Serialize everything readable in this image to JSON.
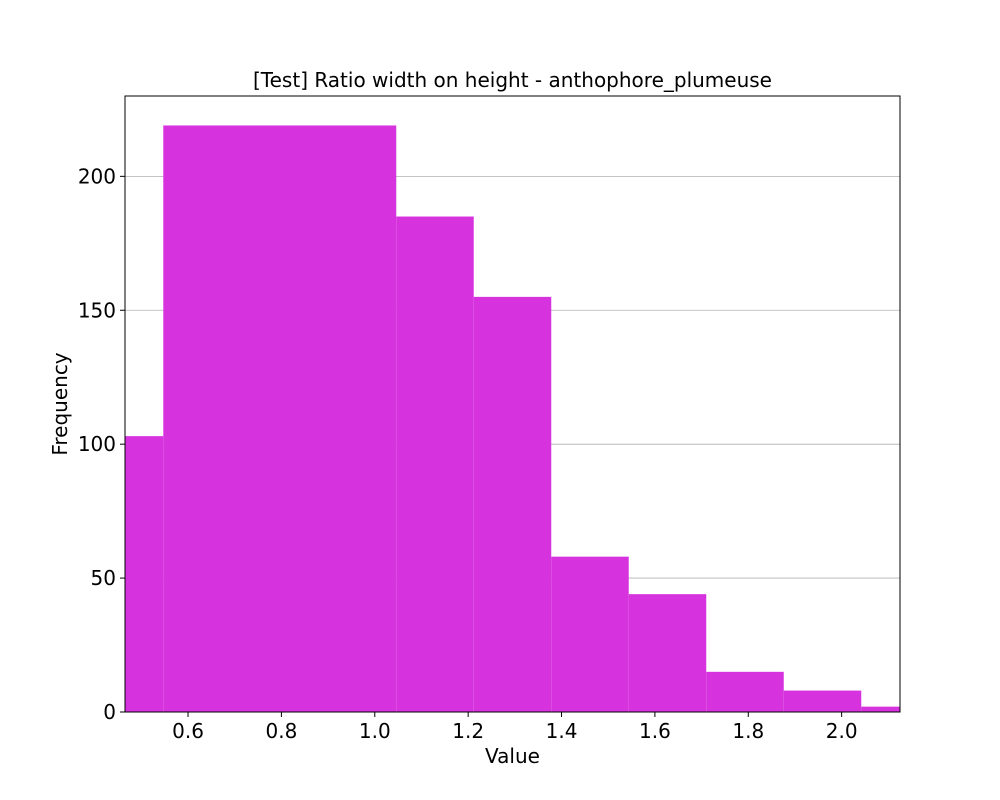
{
  "chart_data": {
    "type": "bar",
    "title": "[Test] Ratio width on height - anthophore_plumeuse",
    "xlabel": "Value",
    "ylabel": "Frequency",
    "xlim": [
      0.465,
      2.125
    ],
    "ylim": [
      0,
      230
    ],
    "xticks": [
      0.6,
      0.8,
      1.0,
      1.2,
      1.4,
      1.6,
      1.8,
      2.0
    ],
    "xtick_labels": [
      "0.6",
      "0.8",
      "1.0",
      "1.2",
      "1.4",
      "1.6",
      "1.8",
      "2.0"
    ],
    "yticks": [
      0,
      50,
      100,
      150,
      200
    ],
    "ytick_labels": [
      "0",
      "50",
      "100",
      "150",
      "200"
    ],
    "grid": "y",
    "bar_color": "#d633df",
    "bins": [
      {
        "x0": 0.465,
        "x1": 0.547,
        "value": 103
      },
      {
        "x0": 0.547,
        "x1": 1.046,
        "value": 219
      },
      {
        "x0": 1.046,
        "x1": 1.212,
        "value": 185
      },
      {
        "x0": 1.212,
        "x1": 1.378,
        "value": 155
      },
      {
        "x0": 1.378,
        "x1": 1.544,
        "value": 58
      },
      {
        "x0": 1.544,
        "x1": 1.71,
        "value": 44
      },
      {
        "x0": 1.71,
        "x1": 1.876,
        "value": 15
      },
      {
        "x0": 1.876,
        "x1": 2.042,
        "value": 8
      },
      {
        "x0": 2.042,
        "x1": 2.125,
        "value": 2
      }
    ]
  }
}
